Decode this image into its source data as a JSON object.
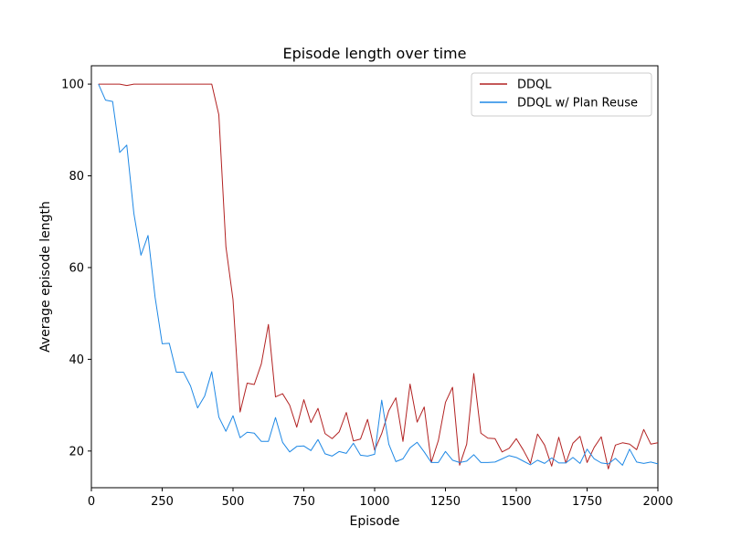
{
  "chart_data": {
    "type": "line",
    "title": "Episode length over time",
    "xlabel": "Episode",
    "ylabel": "Average episode length",
    "xlim": [
      0,
      2000
    ],
    "ylim": [
      12,
      104
    ],
    "xticks": [
      0,
      250,
      500,
      750,
      1000,
      1250,
      1500,
      1750,
      2000
    ],
    "yticks": [
      20,
      40,
      60,
      80,
      100
    ],
    "grid": false,
    "legend_position": "top-right",
    "x": [
      25,
      50,
      75,
      100,
      125,
      150,
      175,
      200,
      225,
      250,
      275,
      300,
      325,
      350,
      375,
      400,
      425,
      450,
      475,
      500,
      525,
      550,
      575,
      600,
      625,
      650,
      675,
      700,
      725,
      750,
      775,
      800,
      825,
      850,
      875,
      900,
      925,
      950,
      975,
      1000,
      1025,
      1050,
      1075,
      1100,
      1125,
      1150,
      1175,
      1200,
      1225,
      1250,
      1275,
      1300,
      1325,
      1350,
      1375,
      1400,
      1425,
      1450,
      1475,
      1500,
      1525,
      1550,
      1575,
      1600,
      1625,
      1650,
      1675,
      1700,
      1725,
      1750,
      1775,
      1800,
      1825,
      1850,
      1875,
      1900,
      1925,
      1950,
      1975,
      2000
    ],
    "series": [
      {
        "name": "DDQL",
        "color": "#b22222",
        "values": [
          100,
          100,
          100,
          100,
          99.7,
          100,
          100,
          100,
          100,
          100,
          100,
          100,
          100,
          100,
          100,
          100,
          100,
          93.3,
          64.5,
          53,
          28.5,
          34.8,
          34.5,
          39,
          47.6,
          31.8,
          32.5,
          30,
          25.2,
          31.2,
          26.2,
          29.3,
          23.8,
          22.7,
          24.2,
          28.4,
          22.2,
          22.6,
          26.9,
          20.2,
          23.8,
          28.8,
          31.6,
          22.1,
          34.6,
          26.3,
          29.6,
          17.5,
          22.3,
          30.6,
          33.9,
          16.9,
          21.5,
          36.9,
          23.9,
          22.8,
          22.7,
          19.8,
          20.6,
          22.7,
          20.2,
          17.3,
          23.7,
          21.3,
          16.7,
          23,
          17.4,
          21.7,
          23.2,
          17.5,
          20.8,
          23.1,
          16.1,
          21.3,
          21.8,
          21.5,
          20.3,
          24.7,
          21.5,
          21.8
        ]
      },
      {
        "name": "DDQL w/ Plan Reuse",
        "color": "#1e88e5",
        "values": [
          100,
          96.5,
          96.2,
          85.1,
          86.7,
          71.8,
          62.7,
          67,
          53.5,
          43.4,
          43.5,
          37.2,
          37.2,
          34.2,
          29.4,
          32,
          37.3,
          27.4,
          24.3,
          27.7,
          22.9,
          24.1,
          23.9,
          22.1,
          22.1,
          27.3,
          21.9,
          19.8,
          21,
          21.1,
          20.1,
          22.5,
          19.4,
          18.9,
          19.9,
          19.5,
          21.7,
          19.1,
          18.9,
          19.3,
          31.1,
          21.5,
          17.7,
          18.3,
          20.7,
          21.9,
          19.8,
          17.5,
          17.5,
          19.9,
          18,
          17.5,
          17.8,
          19.2,
          17.5,
          17.5,
          17.6,
          18.3,
          19,
          18.6,
          17.8,
          17,
          18,
          17.3,
          18.5,
          17.4,
          17.4,
          18.6,
          17.3,
          20.4,
          18.3,
          17.4,
          17.2,
          18.4,
          16.9,
          20.4,
          17.6,
          17.3,
          17.6,
          17.2
        ]
      }
    ]
  }
}
